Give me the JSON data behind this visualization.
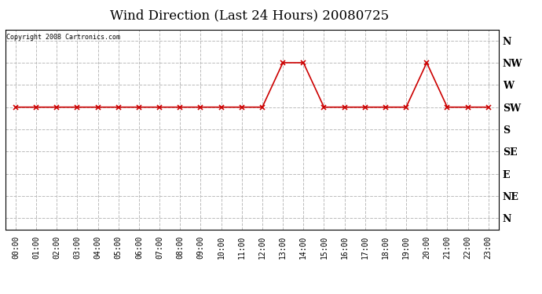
{
  "title": "Wind Direction (Last 24 Hours) 20080725",
  "copyright_text": "Copyright 2008 Cartronics.com",
  "y_labels": [
    "N",
    "NW",
    "W",
    "SW",
    "S",
    "SE",
    "E",
    "NE",
    "N"
  ],
  "y_values": [
    8,
    7,
    6,
    5,
    4,
    3,
    2,
    1,
    0
  ],
  "x_labels": [
    "00:00",
    "01:00",
    "02:00",
    "03:00",
    "04:00",
    "05:00",
    "06:00",
    "07:00",
    "08:00",
    "09:00",
    "10:00",
    "11:00",
    "12:00",
    "13:00",
    "14:00",
    "15:00",
    "16:00",
    "17:00",
    "18:00",
    "19:00",
    "20:00",
    "21:00",
    "22:00",
    "23:00"
  ],
  "hours": [
    0,
    1,
    2,
    3,
    4,
    5,
    6,
    7,
    8,
    9,
    10,
    11,
    12,
    13,
    14,
    15,
    16,
    17,
    18,
    19,
    20,
    21,
    22,
    23
  ],
  "wind_data": {
    "0": 5,
    "1": 5,
    "2": 5,
    "3": 5,
    "4": 5,
    "5": 5,
    "6": 5,
    "7": 5,
    "8": 5,
    "9": 5,
    "10": 5,
    "11": 5,
    "12": 5,
    "13": 7,
    "14": 7,
    "15": 5,
    "16": 5,
    "17": 5,
    "18": 5,
    "19": 5,
    "20": 7,
    "21": 5,
    "22": 5,
    "23": 5
  },
  "line_color": "#cc0000",
  "marker": "x",
  "marker_size": 4,
  "line_width": 1.2,
  "bg_color": "#ffffff",
  "plot_bg_color": "#ffffff",
  "grid_color": "#bbbbbb",
  "grid_style": "--",
  "title_fontsize": 12,
  "tick_fontsize": 7,
  "ylabel_fontsize": 9
}
